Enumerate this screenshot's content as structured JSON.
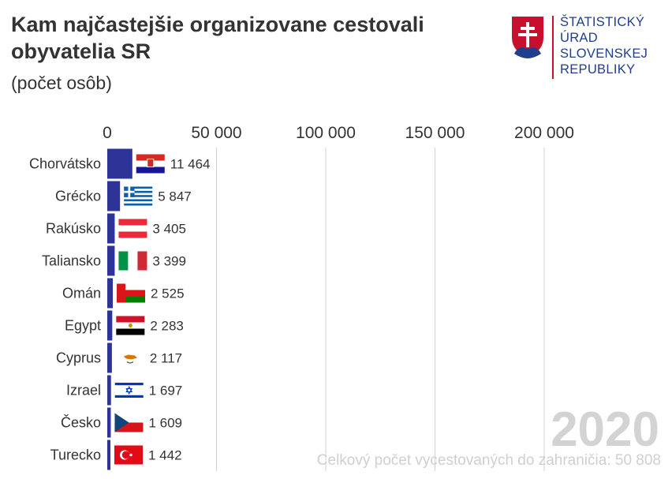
{
  "header": {
    "title": "Kam najčastejšie organizovane cestovali obyvatelia SR",
    "subtitle": "(počet osôb)"
  },
  "logo": {
    "line1": "ŠTATISTICKÝ",
    "line2": "ÚRAD",
    "line3": "SLOVENSKEJ",
    "line4": "REPUBLIKY"
  },
  "footer": {
    "year": "2020",
    "total": "Celkový počet vycestovaných do zahraničia: 50 808"
  },
  "colors": {
    "bar": "#2d3397",
    "grid": "#d0d0d0",
    "brand": "#213e8c",
    "brand_red": "#c8102e"
  },
  "chart_data": {
    "type": "bar",
    "orientation": "horizontal",
    "categories": [
      "Chorvátsko",
      "Grécko",
      "Rakúsko",
      "Taliansko",
      "Omán",
      "Egypt",
      "Cyprus",
      "Izrael",
      "Česko",
      "Turecko"
    ],
    "values": [
      11464,
      5847,
      3405,
      3399,
      2525,
      2283,
      2117,
      1697,
      1609,
      1442
    ],
    "value_labels": [
      "11 464",
      "5 847",
      "3 405",
      "3 399",
      "2 525",
      "2 283",
      "2 117",
      "1 697",
      "1 609",
      "1 442"
    ],
    "flags": [
      "flag-croatia",
      "flag-greece",
      "flag-austria",
      "flag-italy",
      "flag-oman",
      "flag-egypt",
      "flag-cyprus",
      "flag-israel",
      "flag-czechia",
      "flag-turkey"
    ],
    "ticks": [
      0,
      50000,
      100000,
      150000,
      200000
    ],
    "tick_labels": [
      "0",
      "50 000",
      "100 000",
      "150 000",
      "200 000"
    ],
    "xlim": [
      0,
      200000
    ],
    "grid": true,
    "axis_position": "top"
  }
}
